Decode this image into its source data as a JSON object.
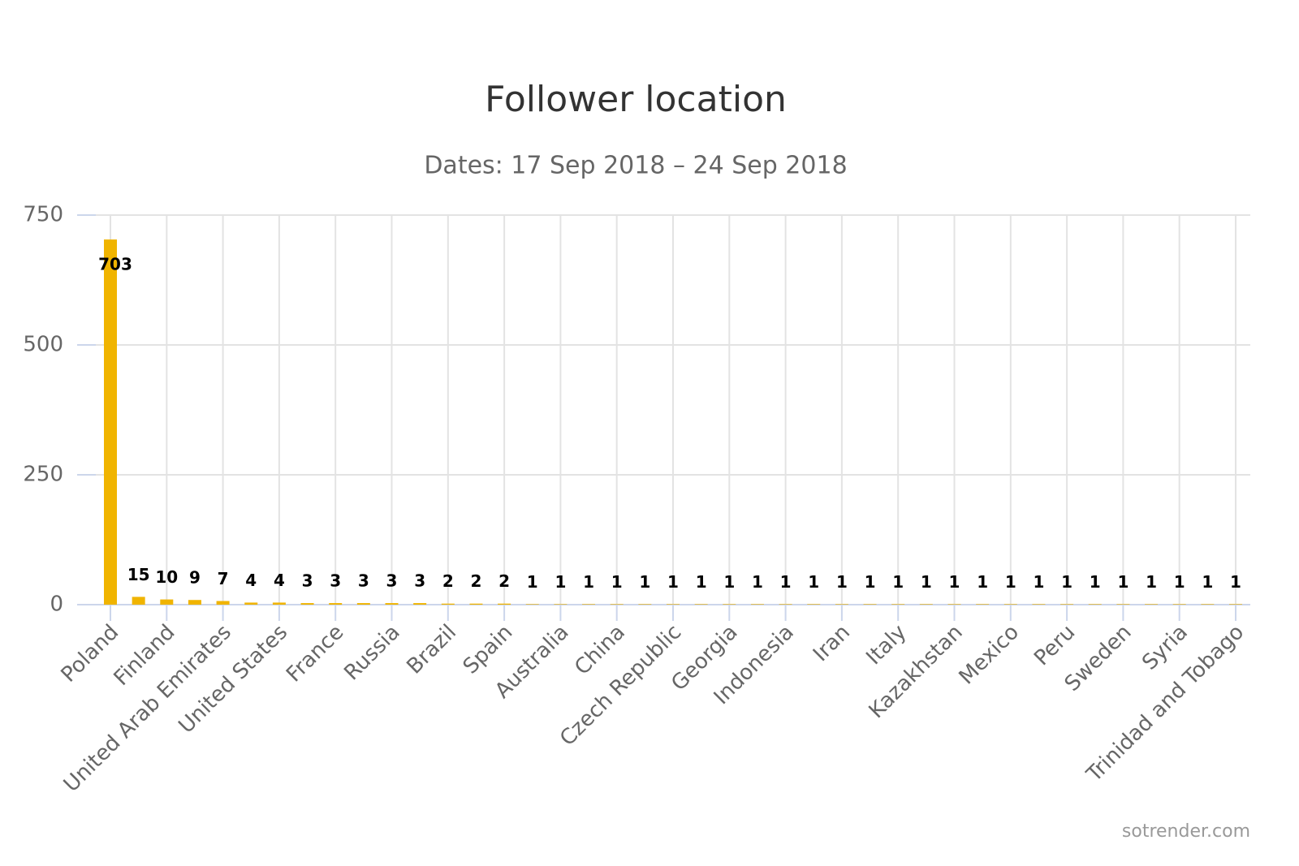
{
  "chart_data": {
    "type": "bar",
    "title": "Follower location",
    "subtitle": "Dates: 17 Sep 2018 – 24 Sep 2018",
    "categories": [
      "Poland",
      null,
      "Finland",
      null,
      "United Arab Emirates",
      null,
      "United States",
      null,
      "France",
      null,
      "Russia",
      null,
      "Brazil",
      null,
      "Spain",
      null,
      "Australia",
      null,
      "China",
      null,
      "Czech Republic",
      null,
      "Georgia",
      null,
      "Indonesia",
      null,
      "Iran",
      null,
      "Italy",
      null,
      "Kazakhstan",
      null,
      "Mexico",
      null,
      "Peru",
      null,
      "Sweden",
      null,
      "Syria",
      null,
      "Trinidad and Tobago"
    ],
    "values": [
      703,
      15,
      10,
      9,
      7,
      4,
      4,
      3,
      3,
      3,
      3,
      3,
      2,
      2,
      2,
      1,
      1,
      1,
      1,
      1,
      1,
      1,
      1,
      1,
      1,
      1,
      1,
      1,
      1,
      1,
      1,
      1,
      1,
      1,
      1,
      1,
      1,
      1,
      1,
      1,
      1
    ],
    "color": "#f0b400",
    "ylim": [
      0,
      750
    ],
    "yticks": [
      0,
      250,
      500,
      750
    ],
    "grid": true,
    "credit": "sotrender.com"
  }
}
